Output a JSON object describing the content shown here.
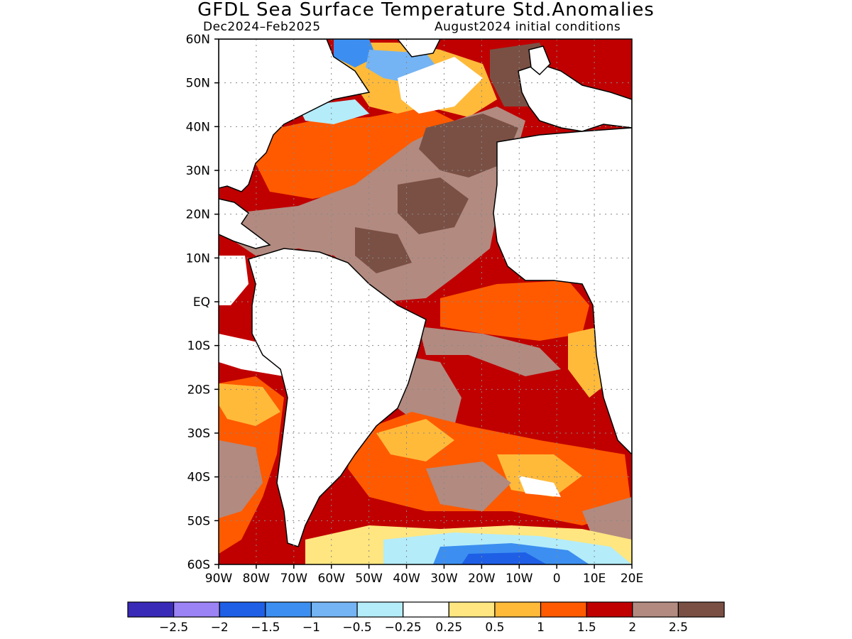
{
  "title": "GFDL Sea Surface Temperature Std.Anomalies",
  "subtitle_left": "Dec2024–Feb2025",
  "subtitle_right": "August2024 initial conditions",
  "map": {
    "lat_labels": [
      "60N",
      "50N",
      "40N",
      "30N",
      "20N",
      "10N",
      "EQ",
      "10S",
      "20S",
      "30S",
      "40S",
      "50S",
      "60S"
    ],
    "lon_labels": [
      "90W",
      "80W",
      "70W",
      "60W",
      "50W",
      "40W",
      "30W",
      "20W",
      "10W",
      "0",
      "10E",
      "20E"
    ],
    "ocean_color": "#c00000",
    "land_color": "#ffffff"
  },
  "colorbar": {
    "colors": [
      "#3a2ab8",
      "#9b82f5",
      "#1e5fe6",
      "#3c8ff0",
      "#74b4f4",
      "#b4ecfa",
      "#ffffff",
      "#ffe680",
      "#ffba3a",
      "#ff5a00",
      "#c00000",
      "#b28a80",
      "#7a5044"
    ],
    "labels": [
      "−2.5",
      "−2",
      "−1.5",
      "−1",
      "−0.5",
      "−0.25",
      "0.25",
      "0.5",
      "1",
      "1.5",
      "2",
      "2.5"
    ]
  }
}
